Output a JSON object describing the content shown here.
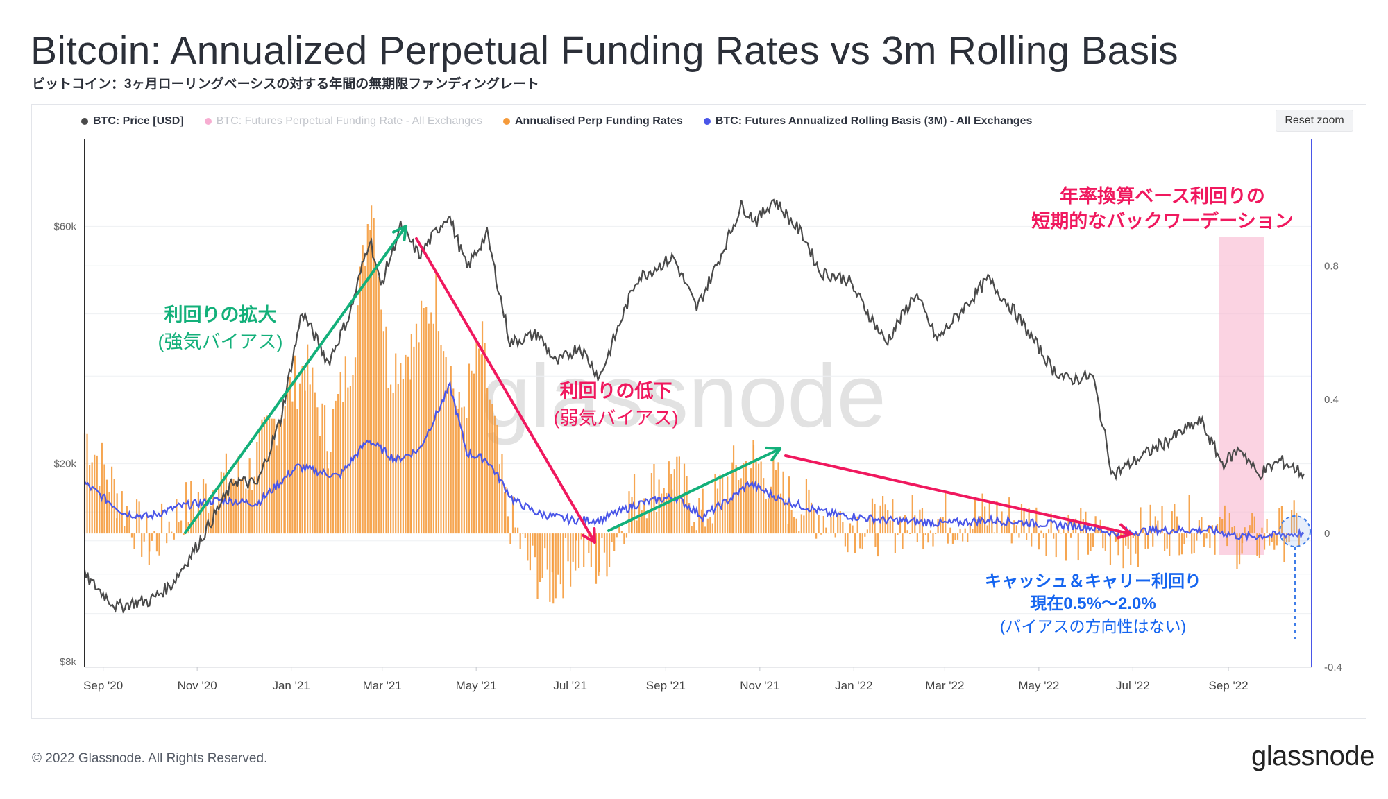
{
  "header": {
    "title": "Bitcoin: Annualized Perpetual Funding Rates vs 3m Rolling Basis",
    "subtitle": "ビットコイン：3ヶ月ローリングベーシスの対する年間の無期限ファンディングレート"
  },
  "legend": [
    {
      "label": "BTC: Price [USD]",
      "color": "#4a4a4a",
      "muted": false
    },
    {
      "label": "BTC: Futures Perpetual Funding Rate - All Exchanges",
      "color": "#e8137a",
      "muted": true
    },
    {
      "label": "Annualised Perp Funding Rates",
      "color": "#f59a3a",
      "muted": false
    },
    {
      "label": "BTC: Futures Annualized Rolling Basis (3M) - All Exchanges",
      "color": "#4a56e8",
      "muted": false
    }
  ],
  "controls": {
    "reset_zoom": "Reset zoom"
  },
  "watermark": "glassnode",
  "annotations": {
    "expand_title": "利回りの拡大",
    "expand_sub": "(強気バイアス)",
    "decline_title": "利回りの低下",
    "decline_sub": "(弱気バイアス)",
    "backwardation_line1": "年率換算ベース利回りの",
    "backwardation_line2": "短期的なバックワーデーション",
    "carry_line1": "キャッシュ＆キャリー利回り",
    "carry_line2": "現在0.5%〜2.0%",
    "carry_line3": "(バイアスの方向性はない)"
  },
  "footer": {
    "copyright": "© 2022 Glassnode. All Rights Reserved.",
    "brand": "glassnode"
  },
  "colors": {
    "price": "#4a4a4a",
    "funding": "#f59a3a",
    "basis": "#4a56e8",
    "green": "#13b07a",
    "red": "#f0185e",
    "blue_text": "#1565f0"
  },
  "chart_data": {
    "type": "line",
    "x_start": "2020-08-20",
    "x_end": "2022-10-25",
    "x_ticks": [
      "Sep '20",
      "Nov '20",
      "Jan '21",
      "Mar '21",
      "May '21",
      "Jul '21",
      "Sep '21",
      "Nov '21",
      "Jan '22",
      "Mar '22",
      "May '22",
      "Jul '22",
      "Sep '22"
    ],
    "y_left": {
      "scale": "log",
      "ticks": [
        "$8k",
        "$20k",
        "$60k"
      ],
      "tick_values": [
        8000,
        20000,
        60000
      ],
      "range": [
        7800,
        90000
      ]
    },
    "y_right": {
      "ticks": [
        "0.8",
        "0.4",
        "0",
        "-0.4"
      ],
      "tick_values": [
        0.8,
        0.4,
        0,
        -0.4
      ],
      "range": [
        -0.4,
        1.18
      ]
    },
    "series": [
      {
        "name": "BTC: Price [USD]",
        "axis": "left",
        "points": [
          [
            "2020-08-20",
            11900
          ],
          [
            "2020-09-10",
            10300
          ],
          [
            "2020-09-20",
            10500
          ],
          [
            "2020-10-01",
            10600
          ],
          [
            "2020-10-15",
            11400
          ],
          [
            "2020-11-01",
            13700
          ],
          [
            "2020-11-25",
            18500
          ],
          [
            "2020-12-10",
            18200
          ],
          [
            "2020-12-25",
            24500
          ],
          [
            "2021-01-08",
            40500
          ],
          [
            "2021-01-25",
            32000
          ],
          [
            "2021-02-08",
            40000
          ],
          [
            "2021-02-21",
            57000
          ],
          [
            "2021-02-28",
            45500
          ],
          [
            "2021-03-13",
            60000
          ],
          [
            "2021-03-25",
            52500
          ],
          [
            "2021-04-13",
            63500
          ],
          [
            "2021-04-25",
            49500
          ],
          [
            "2021-05-08",
            58000
          ],
          [
            "2021-05-23",
            35000
          ],
          [
            "2021-06-10",
            36500
          ],
          [
            "2021-06-22",
            31800
          ],
          [
            "2021-07-07",
            34500
          ],
          [
            "2021-07-20",
            29800
          ],
          [
            "2021-08-13",
            47000
          ],
          [
            "2021-09-06",
            52000
          ],
          [
            "2021-09-21",
            41000
          ],
          [
            "2021-10-05",
            51000
          ],
          [
            "2021-10-20",
            66000
          ],
          [
            "2021-10-30",
            61500
          ],
          [
            "2021-11-10",
            68000
          ],
          [
            "2021-11-30",
            57000
          ],
          [
            "2021-12-10",
            48500
          ],
          [
            "2021-12-28",
            47000
          ],
          [
            "2022-01-22",
            35000
          ],
          [
            "2022-02-10",
            44000
          ],
          [
            "2022-02-24",
            35500
          ],
          [
            "2022-03-29",
            47000
          ],
          [
            "2022-04-15",
            40500
          ],
          [
            "2022-05-10",
            31000
          ],
          [
            "2022-05-20",
            29500
          ],
          [
            "2022-06-05",
            30000
          ],
          [
            "2022-06-18",
            19000
          ],
          [
            "2022-07-10",
            21000
          ],
          [
            "2022-08-14",
            24400
          ],
          [
            "2022-08-28",
            20000
          ],
          [
            "2022-09-09",
            21500
          ],
          [
            "2022-09-20",
            19000
          ],
          [
            "2022-10-05",
            20300
          ],
          [
            "2022-10-20",
            19100
          ]
        ]
      },
      {
        "name": "BTC: Futures Annualized Rolling Basis (3M) - All Exchanges",
        "axis": "right",
        "points": [
          [
            "2020-08-20",
            0.15
          ],
          [
            "2020-09-15",
            0.06
          ],
          [
            "2020-10-01",
            0.05
          ],
          [
            "2020-10-20",
            0.08
          ],
          [
            "2020-11-15",
            0.1
          ],
          [
            "2020-12-10",
            0.09
          ],
          [
            "2021-01-05",
            0.2
          ],
          [
            "2021-02-01",
            0.17
          ],
          [
            "2021-02-20",
            0.28
          ],
          [
            "2021-03-10",
            0.22
          ],
          [
            "2021-03-25",
            0.25
          ],
          [
            "2021-04-14",
            0.44
          ],
          [
            "2021-04-25",
            0.24
          ],
          [
            "2021-05-08",
            0.22
          ],
          [
            "2021-05-25",
            0.1
          ],
          [
            "2021-06-10",
            0.06
          ],
          [
            "2021-07-01",
            0.04
          ],
          [
            "2021-07-20",
            0.04
          ],
          [
            "2021-08-15",
            0.09
          ],
          [
            "2021-09-07",
            0.11
          ],
          [
            "2021-09-25",
            0.05
          ],
          [
            "2021-10-15",
            0.11
          ],
          [
            "2021-10-25",
            0.15
          ],
          [
            "2021-11-15",
            0.1
          ],
          [
            "2021-12-15",
            0.06
          ],
          [
            "2022-01-20",
            0.04
          ],
          [
            "2022-03-01",
            0.03
          ],
          [
            "2022-03-30",
            0.04
          ],
          [
            "2022-05-01",
            0.03
          ],
          [
            "2022-06-01",
            0.02
          ],
          [
            "2022-06-20",
            0.0
          ],
          [
            "2022-07-15",
            0.01
          ],
          [
            "2022-08-20",
            0.01
          ],
          [
            "2022-09-10",
            -0.01
          ],
          [
            "2022-10-20",
            0.0
          ]
        ]
      },
      {
        "name": "Annualised Perp Funding Rates",
        "axis": "right",
        "render": "columns",
        "points": [
          [
            "2020-08-20",
            0.3
          ],
          [
            "2020-09-10",
            0.12
          ],
          [
            "2020-10-01",
            -0.04
          ],
          [
            "2020-10-20",
            0.06
          ],
          [
            "2020-11-15",
            0.15
          ],
          [
            "2020-12-05",
            0.18
          ],
          [
            "2020-12-28",
            0.4
          ],
          [
            "2021-01-10",
            0.5
          ],
          [
            "2021-01-25",
            0.28
          ],
          [
            "2021-02-10",
            0.55
          ],
          [
            "2021-02-22",
            1.02
          ],
          [
            "2021-03-05",
            0.5
          ],
          [
            "2021-03-20",
            0.55
          ],
          [
            "2021-04-05",
            0.72
          ],
          [
            "2021-04-20",
            0.35
          ],
          [
            "2021-05-05",
            0.55
          ],
          [
            "2021-05-20",
            0.08
          ],
          [
            "2021-06-05",
            -0.1
          ],
          [
            "2021-06-20",
            -0.15
          ],
          [
            "2021-07-05",
            -0.05
          ],
          [
            "2021-07-20",
            -0.1
          ],
          [
            "2021-08-10",
            0.1
          ],
          [
            "2021-09-05",
            0.18
          ],
          [
            "2021-09-25",
            0.05
          ],
          [
            "2021-10-15",
            0.18
          ],
          [
            "2021-10-28",
            0.22
          ],
          [
            "2021-11-20",
            0.1
          ],
          [
            "2021-12-20",
            0.04
          ],
          [
            "2022-01-15",
            0.02
          ],
          [
            "2022-02-15",
            0.04
          ],
          [
            "2022-03-30",
            0.05
          ],
          [
            "2022-05-01",
            0.03
          ],
          [
            "2022-06-20",
            -0.04
          ],
          [
            "2022-07-20",
            0.02
          ],
          [
            "2022-08-20",
            0.03
          ],
          [
            "2022-09-10",
            -0.03
          ],
          [
            "2022-10-20",
            0.02
          ]
        ]
      }
    ]
  }
}
